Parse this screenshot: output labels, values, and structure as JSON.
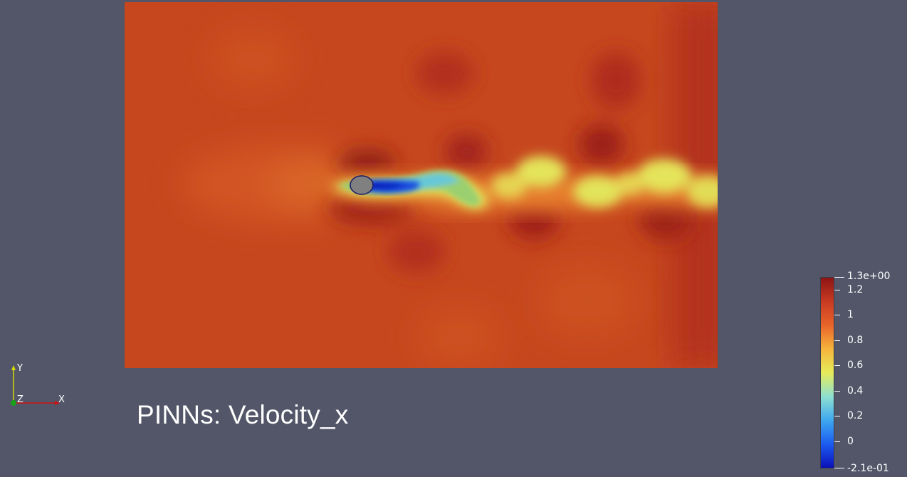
{
  "caption": "PINNs: Velocity_x",
  "axes": {
    "y": "Y",
    "z": "Z",
    "x": "X"
  },
  "colorbar": {
    "max_label": "1.3e+00",
    "min_label": "-2.1e-01",
    "ticks": [
      "1.2",
      "1",
      "0.8",
      "0.6",
      "0.4",
      "0.2",
      "0"
    ],
    "range": [
      -0.21,
      1.3
    ],
    "colors": [
      "#0a10b8",
      "#1c5cf0",
      "#3fa8f0",
      "#8ee0d0",
      "#e6ec5a",
      "#f6b43c",
      "#e8642a",
      "#c83a22",
      "#8c1414"
    ]
  },
  "field": {
    "background_color": "#c6471e",
    "obstacle_color": "#808080"
  }
}
